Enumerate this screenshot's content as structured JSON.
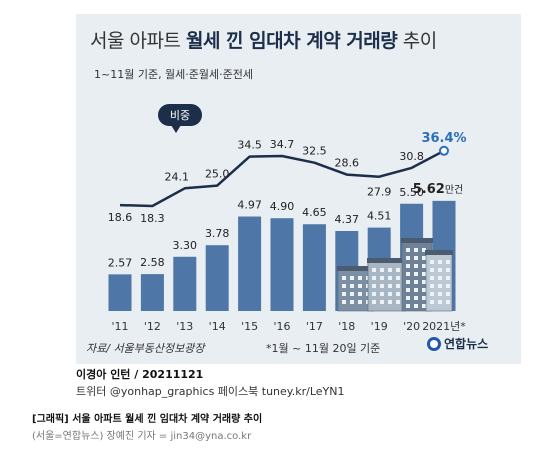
{
  "header": {
    "title_part1": "서울 아파트 ",
    "title_bold": "월세 낀 임대차 계약 거래량",
    "title_part2": " 추이",
    "subtitle": "1~11월 기준, 월세·준월세·준전세"
  },
  "chart_data": {
    "type": "bar+line",
    "categories": [
      "'11",
      "'12",
      "'13",
      "'14",
      "'15",
      "'16",
      "'17",
      "'18",
      "'19",
      "'20",
      "2021년*"
    ],
    "bar_series": {
      "values": [
        2.57,
        2.58,
        3.3,
        3.78,
        4.97,
        4.9,
        4.65,
        4.37,
        4.51,
        5.5,
        5.62
      ],
      "labels": [
        "2.57",
        "2.58",
        "3.30",
        "3.78",
        "4.97",
        "4.90",
        "4.65",
        "4.37",
        "4.51",
        "5.50",
        "5.62"
      ],
      "last_unit": "만건"
    },
    "line_series": {
      "name": "비중",
      "values": [
        18.6,
        18.3,
        24.1,
        25.0,
        34.5,
        34.7,
        32.5,
        28.6,
        27.9,
        30.8,
        36.4
      ],
      "labels": [
        "18.6",
        "18.3",
        "24.1",
        "25.0",
        "34.5",
        "34.7",
        "32.5",
        "28.6",
        "27.9",
        "30.8",
        "36.4%"
      ]
    },
    "colors": {
      "bar": "#4e76a6",
      "line": "#1c2e4a",
      "accent": "#2a70b8"
    }
  },
  "footer": {
    "source": "자료/ 서울부동산정보광장",
    "footnote": "*1월 ~ 11월 20일 기준",
    "logo": "연합뉴스",
    "author": "이경아 인턴 / 20211121",
    "social": "트위터 @yonhap_graphics  페이스북 tuney.kr/LeYN1",
    "caption": "[그래픽] 서울 아파트 월세 낀 임대차 계약 거래량 추이",
    "credit": "(서울=연합뉴스) 장예진 기자 = jin34@yna.co.kr"
  }
}
